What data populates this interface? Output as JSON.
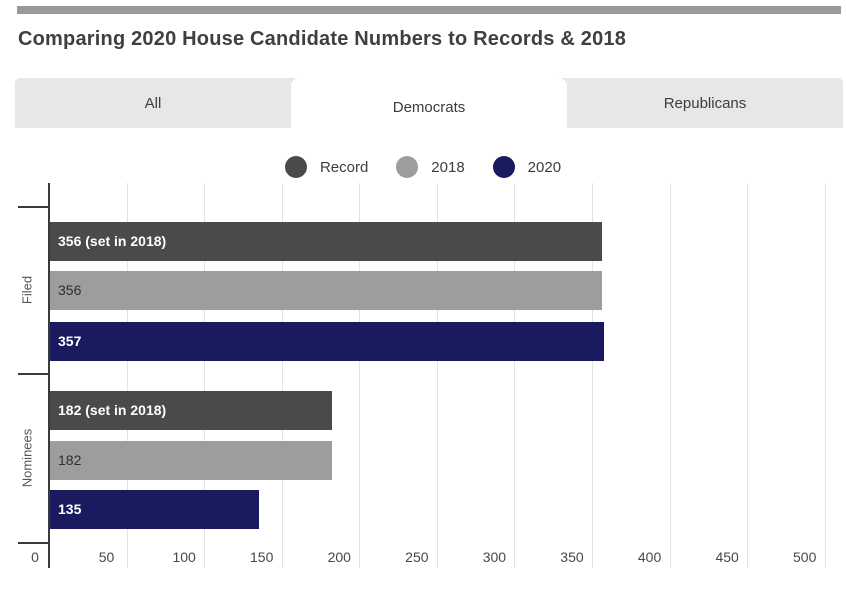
{
  "header": {
    "title": "Comparing 2020 House Candidate Numbers to Records & 2018"
  },
  "tabs": [
    {
      "label": "All",
      "active": false
    },
    {
      "label": "Democrats",
      "active": true
    },
    {
      "label": "Republicans",
      "active": false
    }
  ],
  "colors": {
    "record": "#4a4a4a",
    "y2018": "#9d9d9d",
    "y2020": "#1a1b5e",
    "tab_bar_bg": "#e7e7e7",
    "gridline": "#e3e3e3",
    "axis": "#3a3a3a",
    "scrollbar": "#9a9a9a"
  },
  "chart_data": {
    "type": "bar",
    "orientation": "horizontal",
    "title": "Comparing 2020 House Candidate Numbers to Records & 2018",
    "categories": [
      "Filed",
      "Nominees"
    ],
    "series": [
      {
        "name": "Record",
        "color": "#4a4a4a",
        "values": [
          356,
          182
        ],
        "bar_labels": [
          "356 (set in 2018)",
          "182 (set in 2018)"
        ],
        "label_style": "light"
      },
      {
        "name": "2018",
        "color": "#9d9d9d",
        "values": [
          356,
          182
        ],
        "bar_labels": [
          "356",
          "182"
        ],
        "label_style": "dark"
      },
      {
        "name": "2020",
        "color": "#1a1b5e",
        "values": [
          357,
          135
        ],
        "bar_labels": [
          "357",
          "135"
        ],
        "label_style": "light"
      }
    ],
    "x_ticks": [
      0,
      50,
      100,
      150,
      200,
      250,
      300,
      350,
      400,
      450,
      500
    ],
    "xlim": [
      0,
      513
    ],
    "xlabel": "",
    "ylabel": "",
    "grid": true,
    "legend_position": "top"
  }
}
